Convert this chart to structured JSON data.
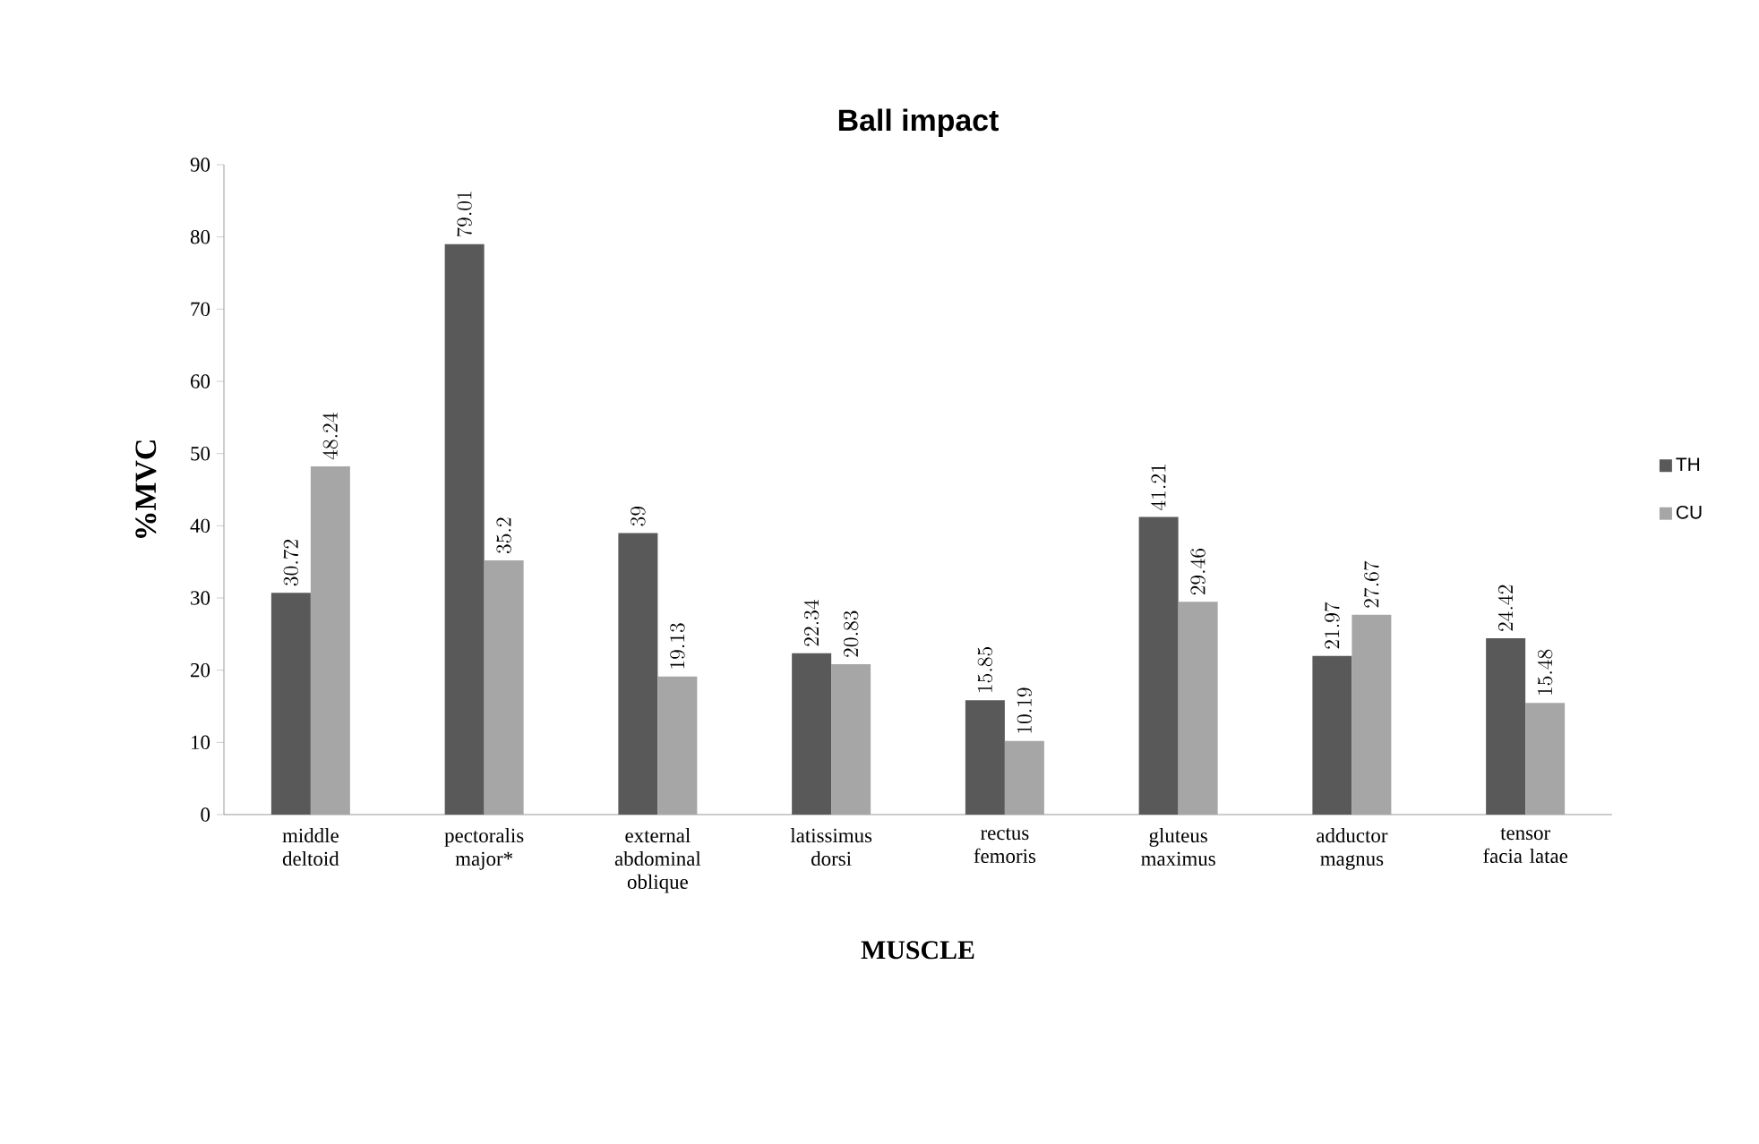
{
  "chart_data": {
    "type": "bar",
    "title": "Ball impact",
    "xlabel": "MUSCLE",
    "ylabel": "%MVC",
    "categories": [
      "middle deltoid",
      "pectoralis major*",
      "external abdominal oblique",
      "latissimus dorsi",
      "rectus femoris",
      "gluteus maximus",
      "adductor magnus",
      "tensor facia latae"
    ],
    "series": [
      {
        "name": "TH",
        "color": "#595959",
        "values": [
          30.72,
          79.01,
          39,
          22.34,
          15.85,
          41.21,
          21.97,
          24.42
        ]
      },
      {
        "name": "CU",
        "color": "#a6a6a6",
        "values": [
          48.24,
          35.2,
          19.13,
          20.83,
          10.19,
          29.46,
          27.67,
          15.48
        ]
      }
    ],
    "ylim": [
      0,
      90
    ],
    "yticks": [
      0,
      10,
      20,
      30,
      40,
      50,
      60,
      70,
      80,
      90
    ],
    "grid": false,
    "legend": "right",
    "data_labels": true
  }
}
